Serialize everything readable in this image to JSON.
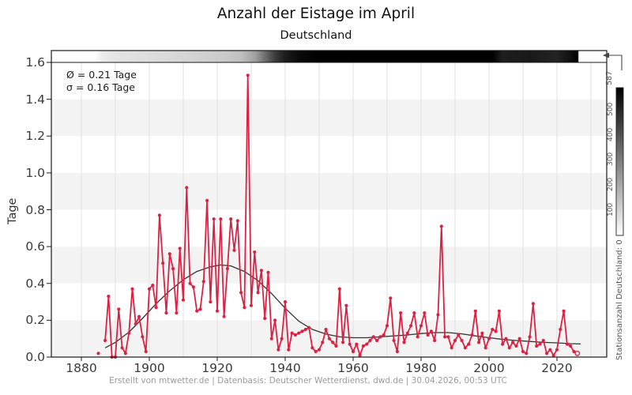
{
  "header": {
    "title": "Anzahl der Eistage im April",
    "subtitle": "Deutschland"
  },
  "stats_box": {
    "mean_label": "Ø = 0.21 Tage",
    "sigma_label": "σ = 0.16 Tage"
  },
  "axes": {
    "ylabel": "Tage",
    "x_tick_labels": [
      "1880",
      "1900",
      "1920",
      "1940",
      "1960",
      "1980",
      "2000",
      "2020"
    ],
    "y_tick_labels": [
      "0.0",
      "0.2",
      "0.4",
      "0.6",
      "0.8",
      "1.0",
      "1.2",
      "1.4",
      "1.6"
    ]
  },
  "colorbar": {
    "max_label": "587",
    "axis_label": "Stationsanzahl Deutschland: 0",
    "tick_labels": [
      "500",
      "400",
      "300",
      "200",
      "100"
    ],
    "tick_values": [
      500,
      400,
      300,
      200,
      100
    ],
    "min_value": 0,
    "max_value": 587
  },
  "footer": {
    "credit_line": "Erstellt von mtwetter.de | Datenbasis: Deutscher Wetterdienst, dwd.de | 30.04.2026, 00:53 UTC"
  },
  "colors": {
    "series": "#dc2143",
    "trend": "#333333",
    "grid": "#e0e0e0",
    "band": "#f3f3f3",
    "axis": "#1a1a1a"
  },
  "chart_data": {
    "type": "line",
    "title": "Anzahl der Eistage im April",
    "subtitle": "Deutschland",
    "xlabel": "",
    "ylabel": "Tage",
    "mean": 0.21,
    "sigma": 0.16,
    "x_ticks": [
      1880,
      1900,
      1920,
      1940,
      1960,
      1980,
      2000,
      2020
    ],
    "x_grid_step": 10,
    "x_grid_range": [
      1880,
      2030
    ],
    "y_ticks": [
      0.0,
      0.2,
      0.4,
      0.6,
      0.8,
      1.0,
      1.2,
      1.4,
      1.6
    ],
    "ylim": [
      0,
      1.6
    ],
    "series": {
      "name": "Eistage",
      "start_year": 1885,
      "last_point_preliminary": true,
      "values": [
        0.02,
        null,
        0.09,
        0.33,
        0.0,
        0.0,
        0.26,
        0.05,
        0.02,
        0.13,
        0.37,
        0.18,
        0.22,
        0.11,
        0.03,
        0.37,
        0.39,
        0.27,
        0.77,
        0.51,
        0.24,
        0.56,
        0.48,
        0.24,
        0.59,
        0.31,
        0.92,
        0.4,
        0.38,
        0.25,
        0.26,
        0.41,
        0.85,
        0.3,
        0.75,
        0.25,
        0.75,
        0.22,
        0.48,
        0.75,
        0.58,
        0.74,
        0.35,
        0.27,
        1.53,
        0.28,
        0.57,
        0.35,
        0.47,
        0.21,
        0.46,
        0.1,
        0.2,
        0.04,
        0.1,
        0.3,
        0.04,
        0.13,
        0.12,
        0.13,
        0.14,
        0.15,
        0.16,
        0.05,
        0.03,
        0.04,
        0.08,
        0.15,
        0.1,
        0.08,
        0.06,
        0.37,
        0.08,
        0.28,
        0.07,
        0.03,
        0.07,
        0.01,
        0.06,
        0.07,
        0.09,
        0.11,
        0.09,
        0.11,
        0.12,
        0.17,
        0.32,
        0.09,
        0.03,
        0.24,
        0.08,
        0.13,
        0.17,
        0.24,
        0.11,
        0.17,
        0.24,
        0.12,
        0.14,
        0.09,
        0.23,
        0.71,
        0.11,
        0.11,
        0.05,
        0.09,
        0.12,
        0.09,
        0.05,
        0.07,
        0.12,
        0.25,
        0.08,
        0.13,
        0.05,
        0.1,
        0.15,
        0.14,
        0.25,
        0.07,
        0.1,
        0.05,
        0.08,
        0.06,
        0.1,
        0.03,
        0.02,
        0.11,
        0.29,
        0.06,
        0.07,
        0.09,
        0.02,
        0.04,
        0.01,
        0.04,
        0.15,
        0.25,
        0.07,
        0.06,
        0.03,
        0.02
      ]
    },
    "trend": [
      [
        1887,
        0.05
      ],
      [
        1890,
        0.08
      ],
      [
        1894,
        0.135
      ],
      [
        1898,
        0.21
      ],
      [
        1902,
        0.29
      ],
      [
        1906,
        0.36
      ],
      [
        1910,
        0.42
      ],
      [
        1914,
        0.465
      ],
      [
        1918,
        0.49
      ],
      [
        1921,
        0.5
      ],
      [
        1924,
        0.495
      ],
      [
        1928,
        0.465
      ],
      [
        1932,
        0.415
      ],
      [
        1936,
        0.345
      ],
      [
        1940,
        0.265
      ],
      [
        1944,
        0.195
      ],
      [
        1948,
        0.15
      ],
      [
        1952,
        0.125
      ],
      [
        1956,
        0.11
      ],
      [
        1960,
        0.105
      ],
      [
        1964,
        0.105
      ],
      [
        1968,
        0.11
      ],
      [
        1972,
        0.115
      ],
      [
        1976,
        0.12
      ],
      [
        1980,
        0.128
      ],
      [
        1984,
        0.133
      ],
      [
        1988,
        0.133
      ],
      [
        1992,
        0.126
      ],
      [
        1996,
        0.115
      ],
      [
        2000,
        0.105
      ],
      [
        2004,
        0.096
      ],
      [
        2008,
        0.09
      ],
      [
        2012,
        0.085
      ],
      [
        2016,
        0.08
      ],
      [
        2020,
        0.077
      ],
      [
        2024,
        0.073
      ],
      [
        2027,
        0.071
      ]
    ],
    "station_strip": {
      "min": 0,
      "max": 587,
      "stops": [
        [
          0,
          "#ffffff"
        ],
        [
          0.078,
          "#ffffff"
        ],
        [
          0.091,
          "#ededed"
        ],
        [
          0.115,
          "#e4e4e4"
        ],
        [
          0.164,
          "#dedede"
        ],
        [
          0.214,
          "#d8d8d8"
        ],
        [
          0.263,
          "#d2d2d2"
        ],
        [
          0.312,
          "#cacaca"
        ],
        [
          0.342,
          "#bfbfbf"
        ],
        [
          0.367,
          "#a0a0a0"
        ],
        [
          0.385,
          "#6e6e6e"
        ],
        [
          0.403,
          "#3c3c3c"
        ],
        [
          0.421,
          "#1c1c1c"
        ],
        [
          0.446,
          "#0a0a0a"
        ],
        [
          0.482,
          "#000000"
        ],
        [
          0.794,
          "#000000"
        ],
        [
          0.812,
          "#1e1e1e"
        ],
        [
          0.861,
          "#191919"
        ],
        [
          0.91,
          "#242424"
        ],
        [
          0.934,
          "#101010"
        ],
        [
          0.948,
          "#000000"
        ],
        [
          0.95,
          "#ffffff"
        ],
        [
          1,
          "#ffffff"
        ]
      ]
    }
  }
}
